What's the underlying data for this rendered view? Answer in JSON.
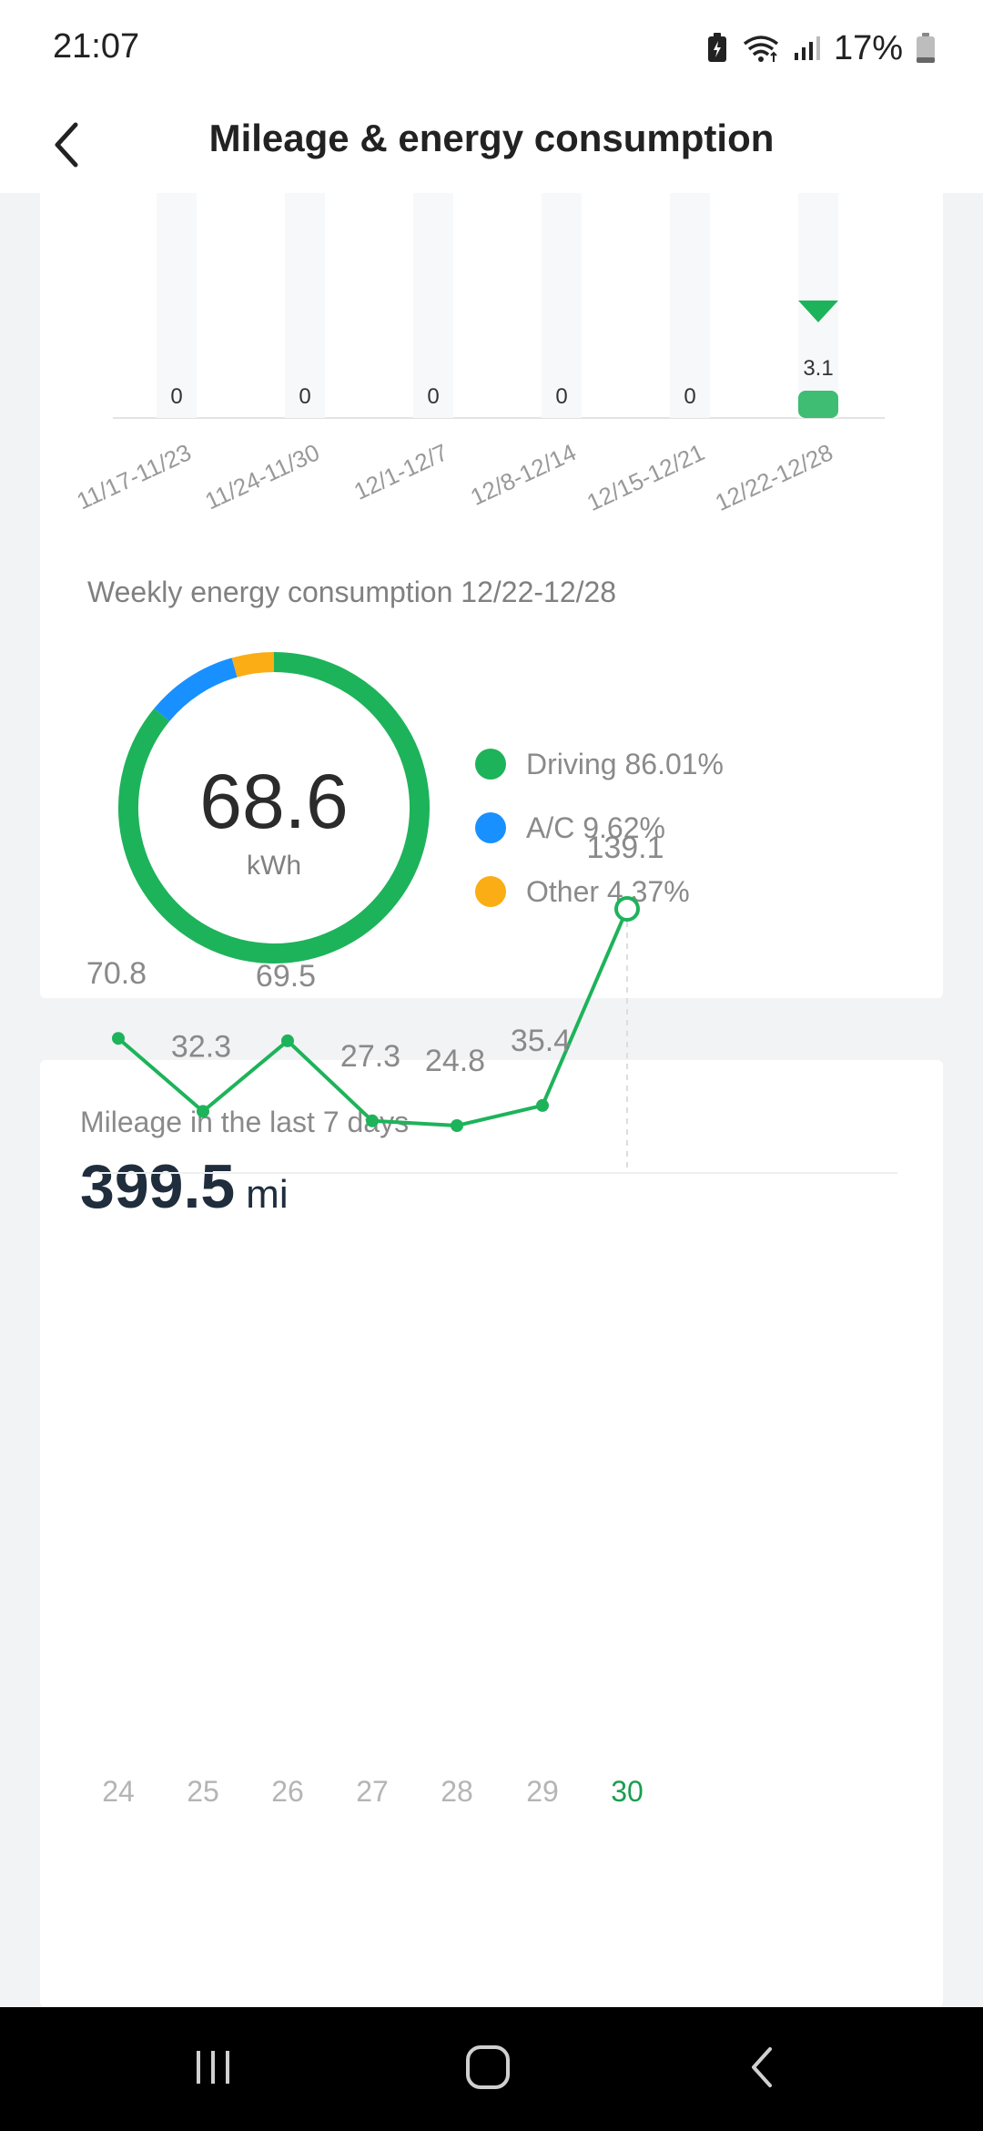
{
  "status_bar": {
    "time": "21:07",
    "battery_percent": "17%",
    "icons": [
      "battery-saver-icon",
      "wifi-icon",
      "signal-icon",
      "battery-icon"
    ]
  },
  "header": {
    "title": "Mileage & energy consumption",
    "back_icon": "chevron-left-icon"
  },
  "weekly_bar_chart": {
    "chart_data": {
      "type": "bar",
      "categories": [
        "11/17-11/23",
        "11/24-11/30",
        "12/1-12/7",
        "12/8-12/14",
        "12/15-12/21",
        "12/22-12/28"
      ],
      "values": [
        0,
        0,
        0,
        0,
        0,
        3.1
      ],
      "value_labels": [
        "0",
        "0",
        "0",
        "0",
        "0",
        "3.1"
      ],
      "selected_index": 5,
      "selected_color": "#1db35a"
    }
  },
  "energy": {
    "title": "Weekly energy consumption 12/22-12/28",
    "total_value": "68.6",
    "total_unit": "kWh",
    "chart_data": {
      "type": "pie",
      "labels": [
        "Driving",
        "A/C",
        "Other"
      ],
      "values": [
        86.01,
        9.62,
        4.37
      ],
      "colors": [
        "#1db35a",
        "#1890ff",
        "#faad14"
      ]
    },
    "legend": [
      {
        "label": "Driving 86.01%",
        "color": "#1db35a"
      },
      {
        "label": "A/C 9.62%",
        "color": "#1890ff"
      },
      {
        "label": "Other 4.37%",
        "color": "#faad14"
      }
    ]
  },
  "mileage": {
    "label": "Mileage in the last 7 days",
    "total_value": "399.5",
    "total_unit": "mi",
    "chart_data": {
      "type": "line",
      "x": [
        "24",
        "25",
        "26",
        "27",
        "28",
        "29",
        "30"
      ],
      "y": [
        70.8,
        32.3,
        69.5,
        27.3,
        24.8,
        35.4,
        139.1
      ],
      "value_labels": [
        "70.8",
        "32.3",
        "69.5",
        "27.3",
        "24.8",
        "35.4",
        "139.1"
      ],
      "selected_index": 6,
      "line_color": "#1db35a"
    }
  },
  "nav_bar": {
    "icons": [
      "recent-apps-icon",
      "home-icon",
      "back-nav-icon"
    ]
  }
}
